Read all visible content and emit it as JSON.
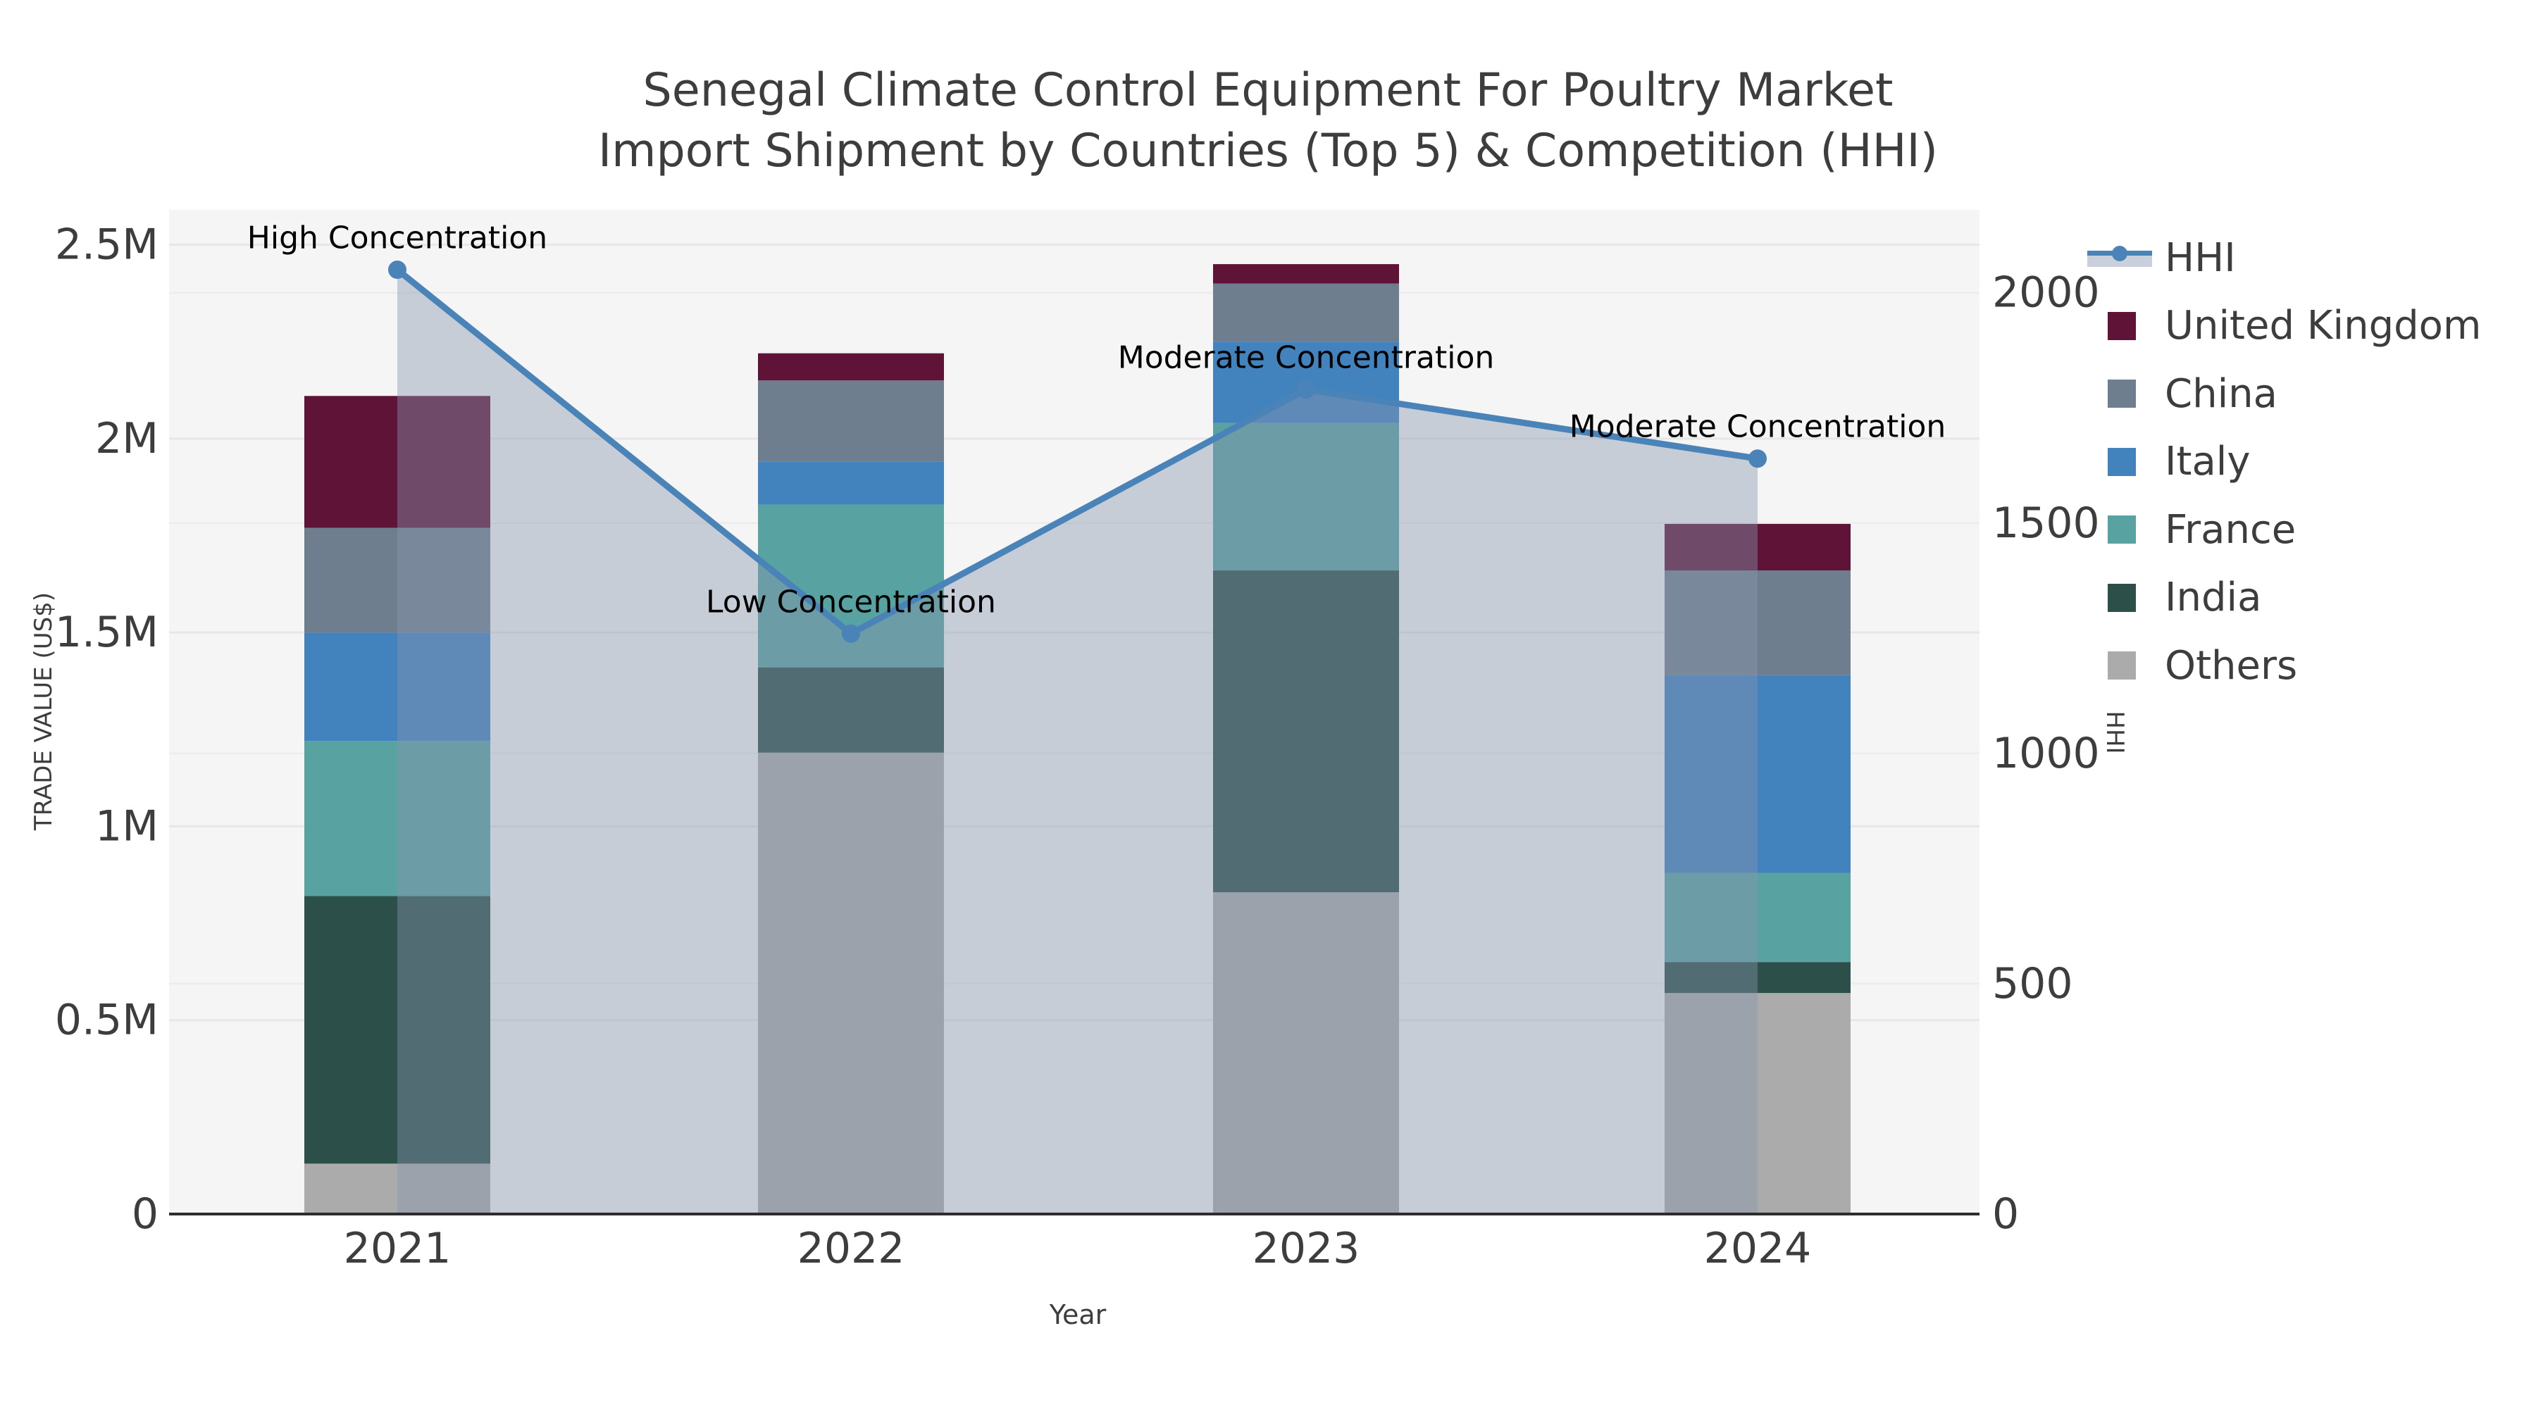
{
  "title": {
    "line1": "Senegal Climate Control Equipment For Poultry Market",
    "line2": "Import Shipment by Countries (Top 5) & Competition (HHI)"
  },
  "axes": {
    "x": {
      "title": "Year",
      "tick_labels": [
        "2021",
        "2022",
        "2023",
        "2024"
      ]
    },
    "y_left": {
      "title": "TRADE VALUE (US$)",
      "tick_labels": [
        "0",
        "0.5M",
        "1M",
        "1.5M",
        "2M",
        "2.5M"
      ],
      "tick_values": [
        0,
        500000,
        1000000,
        1500000,
        2000000,
        2500000
      ],
      "max": 2590000
    },
    "y_right": {
      "title": "HHI",
      "tick_labels": [
        "0",
        "500",
        "1000",
        "1500",
        "2000"
      ],
      "tick_values": [
        0,
        500,
        1000,
        1500,
        2000
      ],
      "max": 2180
    }
  },
  "legend": {
    "items": [
      {
        "label": "HHI",
        "marker": "line-area",
        "color": "#4a83b8",
        "fill": "#c9cfdb"
      },
      {
        "label": "United Kingdom",
        "marker": "square",
        "color": "#5f1437"
      },
      {
        "label": "China",
        "marker": "square",
        "color": "#6f7e8e"
      },
      {
        "label": "Italy",
        "marker": "square",
        "color": "#4282bd"
      },
      {
        "label": "France",
        "marker": "square",
        "color": "#58a2a2"
      },
      {
        "label": "India",
        "marker": "square",
        "color": "#2c4f4a"
      },
      {
        "label": "Others",
        "marker": "square",
        "color": "#ababab"
      }
    ]
  },
  "chart_data": {
    "type": "combo-stacked-bar-line",
    "unit": "US$",
    "categories": [
      "2021",
      "2022",
      "2023",
      "2024"
    ],
    "bar_series": [
      {
        "name": "Others",
        "color": "#ababab",
        "values": [
          130000,
          1190000,
          830000,
          570000
        ]
      },
      {
        "name": "India",
        "color": "#2c4f4a",
        "values": [
          690000,
          220000,
          830000,
          80000
        ]
      },
      {
        "name": "France",
        "color": "#58a2a2",
        "values": [
          400000,
          420000,
          380000,
          230000
        ]
      },
      {
        "name": "Italy",
        "color": "#4282bd",
        "values": [
          280000,
          110000,
          210000,
          510000
        ]
      },
      {
        "name": "China",
        "color": "#6f7e8e",
        "values": [
          270000,
          210000,
          150000,
          270000
        ]
      },
      {
        "name": "United Kingdom",
        "color": "#5f1437",
        "values": [
          340000,
          70000,
          50000,
          120000
        ]
      }
    ],
    "bar_totals": [
      2110000,
      2220000,
      2450000,
      1780000
    ],
    "line_series": {
      "name": "HHI",
      "axis": "right",
      "color": "#4a83b8",
      "area_fill": "rgba(136,149,173,0.42)",
      "values": [
        2050,
        1260,
        1790,
        1640
      ]
    },
    "annotations": [
      {
        "category": "2021",
        "text": "High Concentration"
      },
      {
        "category": "2022",
        "text": "Low Concentration"
      },
      {
        "category": "2023",
        "text": "Moderate Concentration"
      },
      {
        "category": "2024",
        "text": "Moderate Concentration"
      }
    ],
    "xlabel": "Year",
    "ylabel_left": "TRADE VALUE (US$)",
    "ylabel_right": "HHI",
    "ylim_left": [
      0,
      2590000
    ],
    "ylim_right": [
      0,
      2180
    ],
    "grid": true,
    "legend_position": "right"
  },
  "colors": {
    "plot_background": "#f5f5f5",
    "grid_left": "#e7e7e7",
    "grid_right": "#ededed",
    "axis_line": "#2d2d2d",
    "tick_text": "#3d3d3d",
    "annotation_text": "#000000"
  }
}
